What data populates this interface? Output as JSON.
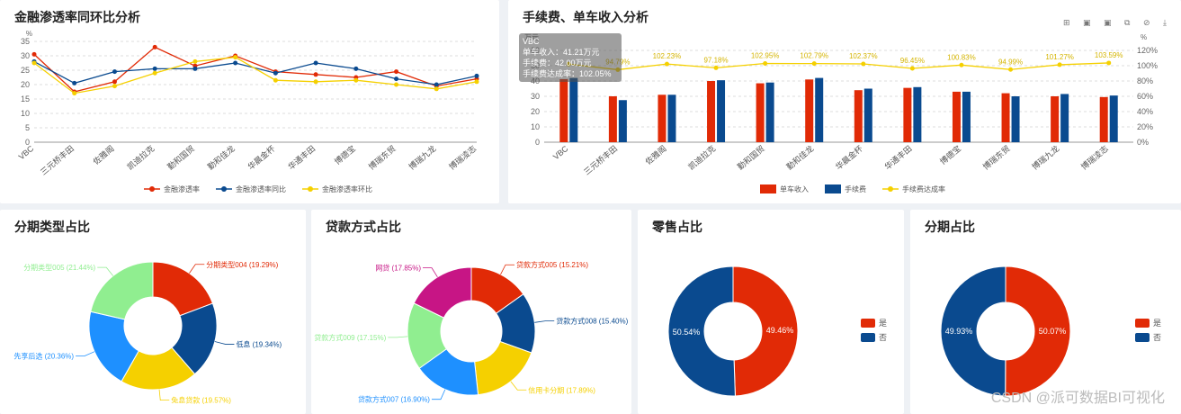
{
  "panels": {
    "p1": {
      "title": "金融渗透率同环比分析"
    },
    "p2": {
      "title": "手续费、单车收入分析"
    },
    "p3": {
      "title": "分期类型占比"
    },
    "p4": {
      "title": "贷款方式占比"
    },
    "p5": {
      "title": "零售占比"
    },
    "p6": {
      "title": "分期占比"
    }
  },
  "tooltip": {
    "title": "VBC",
    "line1": "单车收入：41.21万元",
    "line2": "手续费：42.00万元",
    "line3": "手续费达成率：102.05%"
  },
  "toolbar_icons": "⊞ ▣ ▣ ⧉ ⊘ ⤓",
  "watermark": "CSDN @派可数据BI可视化",
  "colors": {
    "red": "#e12a06",
    "blue": "#0a4a8f",
    "yellow": "#f5d000",
    "green": "#90ee90",
    "sky": "#1e90ff",
    "magenta": "#c71585"
  },
  "chart_data": [
    {
      "id": "rate-line",
      "type": "line",
      "ylabel": "%",
      "ylim": [
        0,
        35
      ],
      "yticks": [
        0,
        5,
        10,
        15,
        20,
        25,
        30,
        35
      ],
      "grid": true,
      "legend": "bottom",
      "categories": [
        "VBC",
        "三元桥丰田",
        "佐雅阁",
        "凯迪拉克",
        "勤和国贸",
        "勤和佳龙",
        "华晨金杯",
        "华通丰田",
        "博德宝",
        "博瑞东贸",
        "博瑞九龙",
        "博瑞凌志"
      ],
      "series": [
        {
          "name": "金融渗透率",
          "color": "#e12a06",
          "values": [
            30.5,
            17.5,
            21,
            33,
            26.5,
            30,
            24.5,
            23.5,
            22.5,
            24.5,
            19.5,
            22
          ]
        },
        {
          "name": "金融渗透率同比",
          "color": "#0a4a8f",
          "values": [
            28,
            20.5,
            24.5,
            25.5,
            25.5,
            27.5,
            24,
            27.5,
            25.5,
            22,
            20,
            23
          ]
        },
        {
          "name": "金融渗透率环比",
          "color": "#f5d000",
          "values": [
            27.5,
            17,
            19.5,
            24,
            28,
            29.5,
            21.5,
            21,
            21.5,
            20,
            18.5,
            21
          ]
        }
      ]
    },
    {
      "id": "fee-bar",
      "type": "bar",
      "ylabel": "万元",
      "y2label": "%",
      "ylim": [
        0,
        60
      ],
      "yticks": [
        0,
        10,
        20,
        30,
        40,
        50,
        60
      ],
      "y2lim": [
        0,
        120
      ],
      "y2ticks": [
        "0%",
        "20%",
        "40%",
        "60%",
        "80%",
        "100%",
        "120%"
      ],
      "grid": true,
      "legend": "bottom",
      "categories": [
        "VBC",
        "三元桥丰田",
        "佐雅阁",
        "凯迪拉克",
        "勤和国贸",
        "勤和佳龙",
        "华晨金杯",
        "华通丰田",
        "博德宝",
        "博瑞东贸",
        "博瑞九龙",
        "博瑞凌志"
      ],
      "series": [
        {
          "name": "单车收入",
          "color": "#e12a06",
          "values": [
            41.21,
            30,
            31,
            40,
            38.5,
            41,
            34,
            35.5,
            33,
            32,
            30,
            29.5
          ]
        },
        {
          "name": "手续费",
          "color": "#0a4a8f",
          "values": [
            42,
            27.5,
            31,
            40.5,
            39,
            42,
            35,
            36,
            33,
            30,
            31.5,
            30.5
          ]
        },
        {
          "name": "手续费达成率",
          "color": "#f5d000",
          "type": "line",
          "values": [
            102.05,
            94.79,
            102.23,
            97.18,
            102.95,
            102.79,
            102.37,
            96.45,
            100.83,
            94.99,
            101.27,
            103.59
          ],
          "labels": [
            "",
            "94.79%",
            "102.23%",
            "97.18%",
            "102.95%",
            "102.79%",
            "102.37%",
            "96.45%",
            "100.83%",
            "94.99%",
            "101.27%",
            "103.59%"
          ]
        }
      ]
    },
    {
      "id": "installment-type",
      "type": "pie",
      "slices": [
        {
          "label": "分期类型004 (19.29%)",
          "value": 19.29,
          "color": "#e12a06"
        },
        {
          "label": "低息 (19.34%)",
          "value": 19.34,
          "color": "#0a4a8f"
        },
        {
          "label": "免息贷款 (19.57%)",
          "value": 19.57,
          "color": "#f5d000"
        },
        {
          "label": "先享后选 (20.36%)",
          "value": 20.36,
          "color": "#1e90ff"
        },
        {
          "label": "分期类型005 (21.44%)",
          "value": 21.44,
          "color": "#90ee90"
        }
      ]
    },
    {
      "id": "loan-method",
      "type": "pie",
      "slices": [
        {
          "label": "贷款方式005 (15.21%)",
          "value": 15.21,
          "color": "#e12a06"
        },
        {
          "label": "贷款方式008 (15.40%)",
          "value": 15.4,
          "color": "#0a4a8f"
        },
        {
          "label": "信用卡分期 (17.89%)",
          "value": 17.89,
          "color": "#f5d000"
        },
        {
          "label": "贷款方式007 (16.90%)",
          "value": 16.9,
          "color": "#1e90ff"
        },
        {
          "label": "贷款方式009 (17.15%)",
          "value": 17.15,
          "color": "#90ee90"
        },
        {
          "label": "网贷 (17.85%)",
          "value": 17.85,
          "color": "#c71585"
        }
      ]
    },
    {
      "id": "retail",
      "type": "pie",
      "legend": "right",
      "legend_items": [
        "是",
        "否"
      ],
      "slices": [
        {
          "label": "49.46%",
          "value": 49.46,
          "color": "#e12a06"
        },
        {
          "label": "50.54%",
          "value": 50.54,
          "color": "#0a4a8f"
        }
      ]
    },
    {
      "id": "installment",
      "type": "pie",
      "legend": "right",
      "legend_items": [
        "是",
        "否"
      ],
      "slices": [
        {
          "label": "50.07%",
          "value": 50.07,
          "color": "#e12a06"
        },
        {
          "label": "49.93%",
          "value": 49.93,
          "color": "#0a4a8f"
        }
      ]
    }
  ]
}
